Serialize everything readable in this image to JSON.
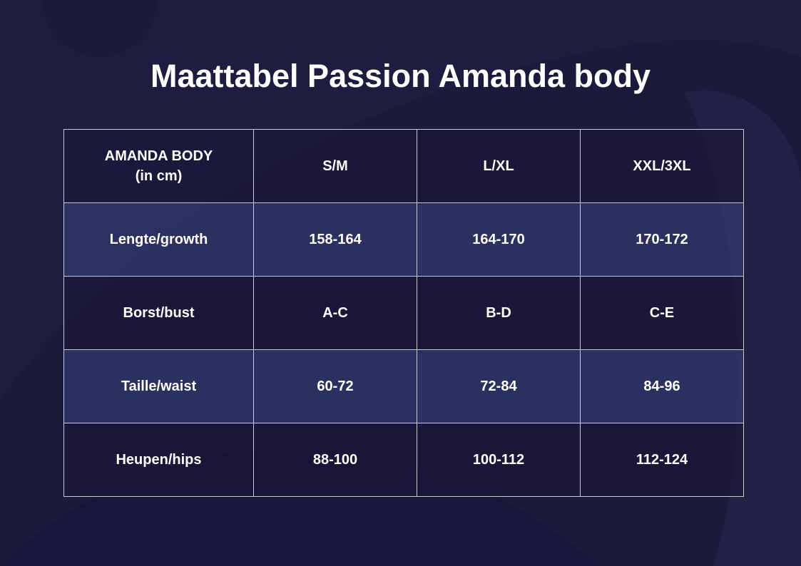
{
  "header": {
    "title": "Maattabel Passion Amanda body"
  },
  "table": {
    "columns": [
      "AMANDA BODY\n(in cm)",
      "S/M",
      "L/XL",
      "XXL/3XL"
    ],
    "rows": [
      [
        "Lengte/growth",
        "158-164",
        "164-170",
        "170-172"
      ],
      [
        "Borst/bust",
        "A-C",
        "B-D",
        "C-E"
      ],
      [
        "Taille/waist",
        "60-72",
        "72-84",
        "84-96"
      ],
      [
        "Heupen/hips",
        "88-100",
        "100-112",
        "112-124"
      ]
    ]
  }
}
